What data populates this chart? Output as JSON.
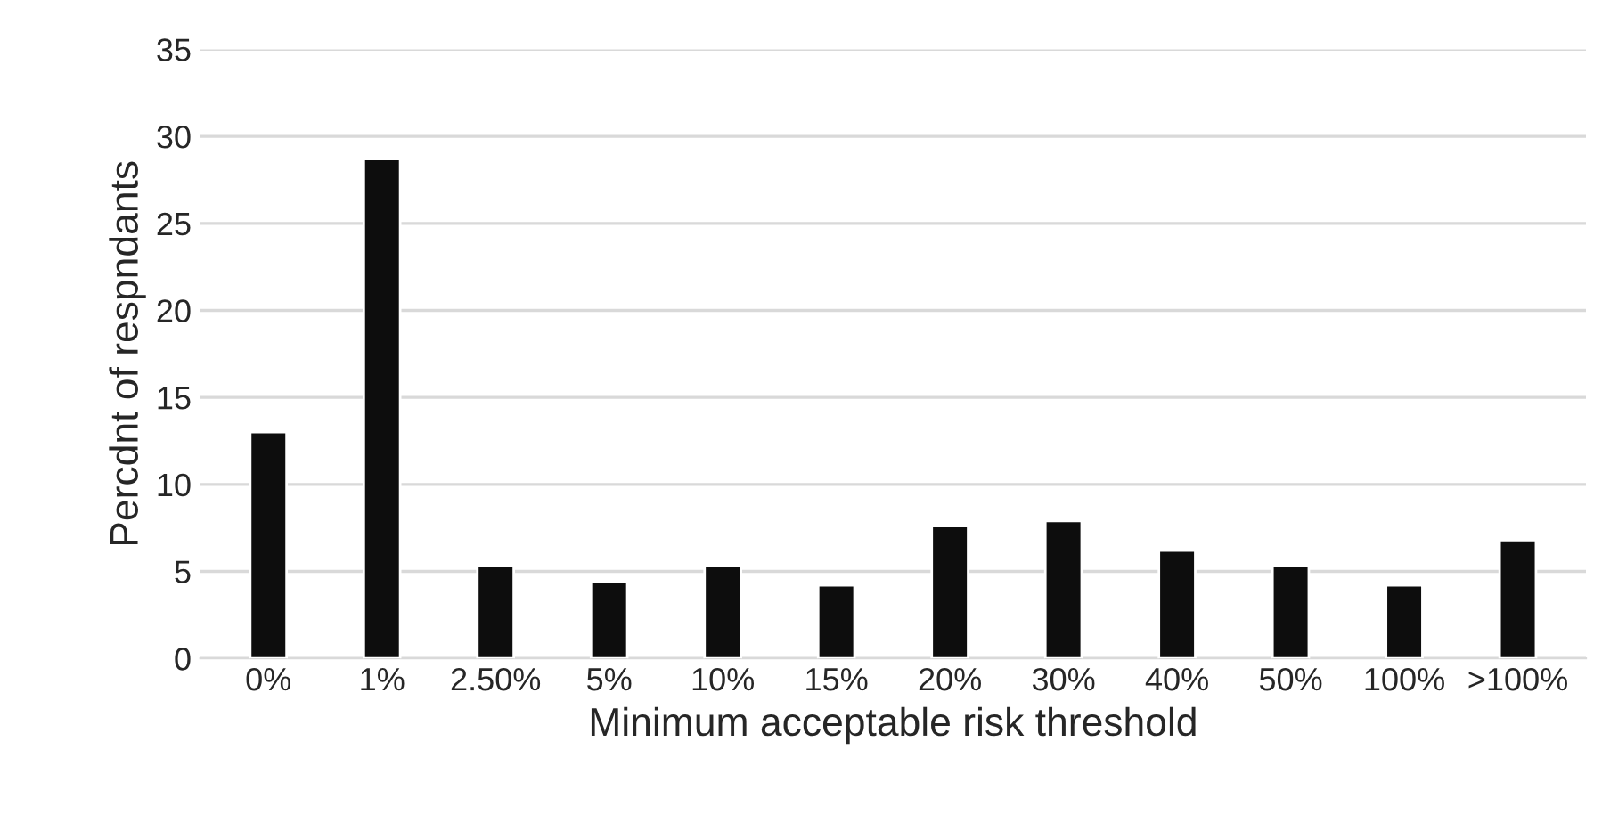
{
  "chart_data": {
    "type": "bar",
    "xlabel": "Minimum acceptable risk threshold",
    "ylabel": "Percdnt of respndants",
    "categories": [
      "0%",
      "1%",
      "2.50%",
      "5%",
      "10%",
      "15%",
      "20%",
      "30%",
      "40%",
      "50%",
      "100%",
      ">100%"
    ],
    "values": [
      13.0,
      28.7,
      5.3,
      4.4,
      5.3,
      4.2,
      7.6,
      7.9,
      6.2,
      5.3,
      4.2,
      6.8
    ],
    "color": "#0d0d0d",
    "ylim": [
      0,
      35
    ],
    "yticks": [
      0,
      5,
      10,
      15,
      20,
      25,
      30,
      35
    ],
    "grid": "y"
  }
}
